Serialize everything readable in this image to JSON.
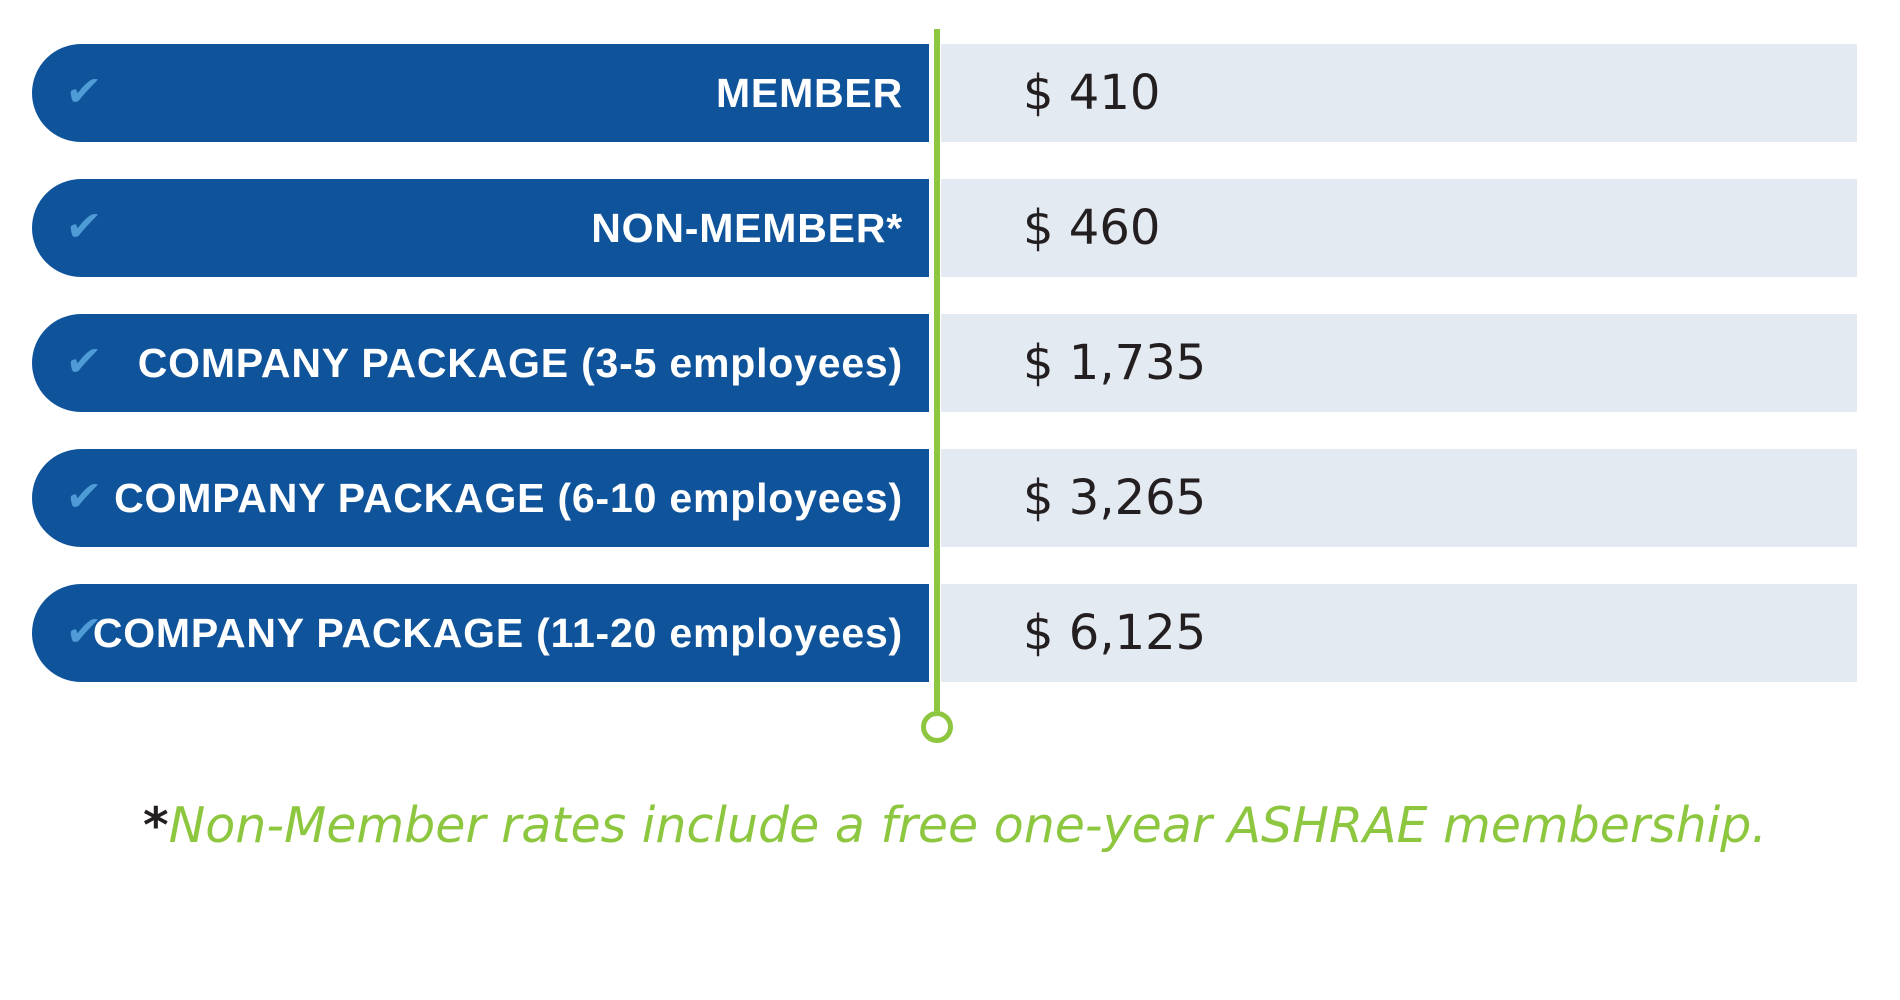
{
  "colors": {
    "pill_blue": "#0F539B",
    "row_bg": "#E4EAF1",
    "accent_green": "#8DC63F",
    "check_blue": "#4E9BD5",
    "price_text": "#231F20",
    "label_text": "#FFFFFF"
  },
  "icons": {
    "check": "✔"
  },
  "pricing_table": {
    "rows": [
      {
        "label": "MEMBER",
        "price": "$ 410"
      },
      {
        "label": "NON-MEMBER*",
        "price": "$ 460"
      },
      {
        "label": "COMPANY PACKAGE (3-5 employees)",
        "price": "$ 1,735"
      },
      {
        "label": "COMPANY PACKAGE (6-10 employees)",
        "price": "$ 3,265"
      },
      {
        "label": "COMPANY PACKAGE (11-20 employees)",
        "price": "$ 6,125"
      }
    ]
  },
  "footnote": {
    "asterisk": "*",
    "text": "Non-Member rates include a free one-year ASHRAE membership."
  },
  "chart_data": {
    "type": "table",
    "categories": [
      "MEMBER",
      "NON-MEMBER*",
      "COMPANY PACKAGE (3-5 employees)",
      "COMPANY PACKAGE (6-10 employees)",
      "COMPANY PACKAGE (11-20 employees)"
    ],
    "values": [
      410,
      460,
      1735,
      3265,
      6125
    ],
    "currency": "$",
    "footnote": "*Non-Member rates include a free one-year ASHRAE membership.",
    "legend_position": "none",
    "grid": false
  }
}
